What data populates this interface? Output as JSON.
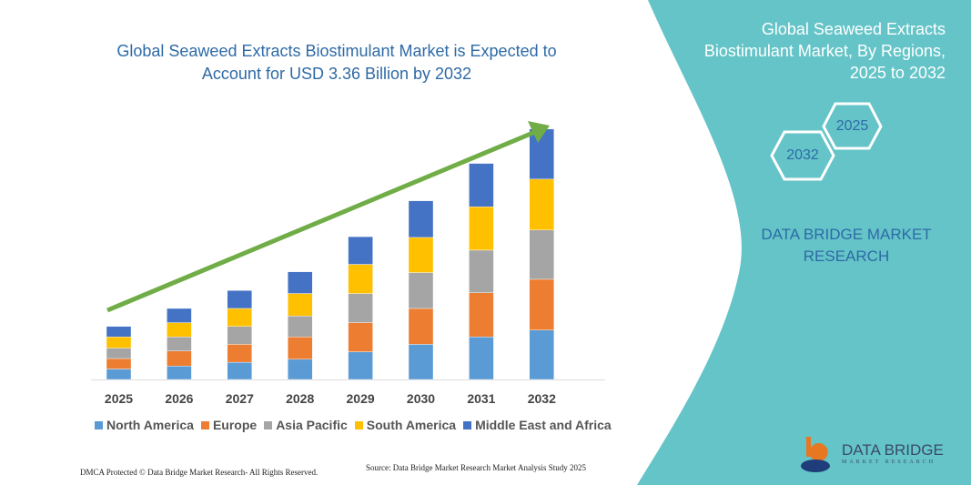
{
  "header": {
    "title": "Global Seaweed Extracts Biostimulant Market is Expected to Account for USD 3.36 Billion by 2032"
  },
  "side_panel": {
    "title": "Global Seaweed Extracts Biostimulant Market, By Regions, 2025 to 2032",
    "hex_start": "2025",
    "hex_end": "2032",
    "brand": "DATA BRIDGE MARKET RESEARCH",
    "logo_text": "DATA BRIDGE",
    "logo_sub": "MARKET RESEARCH",
    "panel_color": "#64c4c8"
  },
  "footer": {
    "copyright": "DMCA Protected © Data Bridge Market Research- All Rights Reserved.",
    "source": "Source: Data Bridge Market Research Market Analysis Study 2025"
  },
  "chart_data": {
    "type": "bar",
    "stacked": true,
    "title": "Global Seaweed Extracts Biostimulant Market is Expected to Account for USD 3.36 Billion by 2032",
    "categories": [
      "2025",
      "2026",
      "2027",
      "2028",
      "2029",
      "2030",
      "2031",
      "2032"
    ],
    "series": [
      {
        "name": "North America",
        "color": "#5b9bd5",
        "values": [
          0.14,
          0.18,
          0.23,
          0.27,
          0.37,
          0.47,
          0.57,
          0.66
        ]
      },
      {
        "name": "Europe",
        "color": "#ed7d31",
        "values": [
          0.14,
          0.2,
          0.24,
          0.3,
          0.39,
          0.48,
          0.59,
          0.68
        ]
      },
      {
        "name": "Asia Pacific",
        "color": "#a5a5a5",
        "values": [
          0.14,
          0.19,
          0.24,
          0.28,
          0.39,
          0.48,
          0.57,
          0.66
        ]
      },
      {
        "name": "South America",
        "color": "#ffc000",
        "values": [
          0.15,
          0.19,
          0.24,
          0.3,
          0.39,
          0.47,
          0.58,
          0.68
        ]
      },
      {
        "name": "Middle East and Africa",
        "color": "#4472c4",
        "values": [
          0.14,
          0.19,
          0.24,
          0.29,
          0.37,
          0.49,
          0.58,
          0.67
        ]
      }
    ],
    "ylim": [
      0,
      3.36
    ],
    "grid": false,
    "legend": "bottom",
    "trend_arrow_color": "#70ad47"
  }
}
